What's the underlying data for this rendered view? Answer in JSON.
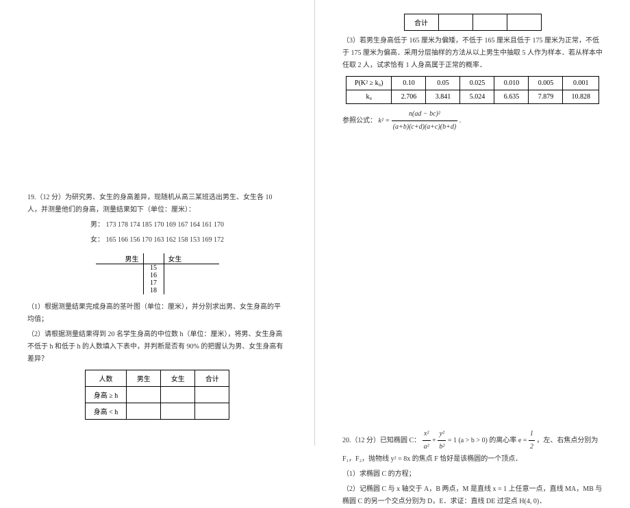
{
  "left": {
    "q19_head": "19.（12 分）为研究男、女生的身高差异，现随机从高三某班选出男生、女生各 10 人，并测量他们的身高，测量结果如下（单位：厘米）：",
    "male_label": "男：",
    "male_data": "173 178 174 185 170 169 167 164 161 170",
    "female_label": "女：",
    "female_data": "165 166 156 170 163 162 158 153 169 172",
    "stem_leaf": {
      "header_l": "男生",
      "header_r": "女生",
      "stems": [
        "15",
        "16",
        "17",
        "18"
      ]
    },
    "part1": "（1）根据测量结果完成身高的茎叶图（单位：厘米），并分别求出男、女生身高的平均值；",
    "part2": "（2）请根据测量结果得到 20 名学生身高的中位数 h（单位：厘米），将男、女生身高不低于 h 和低于 h 的人数填入下表中，并判断是否有 90% 的把握认为男、女生身高有差异？",
    "table2": {
      "c0": "人数",
      "c1": "男生",
      "c2": "女生",
      "c3": "合计",
      "r1": "身高 ≥ h",
      "r2": "身高 < h"
    }
  },
  "right": {
    "row_total": "合计",
    "part3": "（3）若男生身高低于 165 厘米为偏矮，不低于 165 厘米且低于 175 厘米为正常，不低于 175 厘米为偏高．采用分层抽样的方法从以上男生中抽取 5 人作为样本．若从样本中任取 2 人，试求恰有 1 人身高属于正常的概率．",
    "ktable": {
      "h0": "P(K² ≥ k₀)",
      "h1": "0.10",
      "h2": "0.05",
      "h3": "0.025",
      "h4": "0.010",
      "h5": "0.005",
      "h6": "0.001",
      "r0": "k₀",
      "r1": "2.706",
      "r2": "3.841",
      "r3": "5.024",
      "r4": "6.635",
      "r5": "7.879",
      "r6": "10.828"
    },
    "formula_label": "参照公式：",
    "formula_lhs": "k² = ",
    "formula_num": "n(ad − bc)²",
    "formula_den": "(a+b)(c+d)(a+c)(b+d)",
    "q20_head_a": "20.（12 分）已知椭圆 C：",
    "q20_frac1_n": "x²",
    "q20_frac1_d": "a²",
    "q20_plus": " + ",
    "q20_frac2_n": "y²",
    "q20_frac2_d": "b²",
    "q20_head_b": " = 1 (a > b > 0) 的离心率 e = ",
    "q20_frac3_n": "1",
    "q20_frac3_d": "2",
    "q20_head_c": "，左、右焦点分别为 F₁，F₂，抛物线 y² = 8x 的焦点 F 恰好是该椭圆的一个顶点．",
    "q20_p1": "（1）求椭圆 C 的方程；",
    "q20_p2": "（2）记椭圆 C 与 x 轴交于 A，B 两点，M 是直线 x = 1 上任意一点，直线 MA，MB 与椭圆 C 的另一个交点分别为 D，E．求证：直线 DE 过定点 H(4, 0)．"
  }
}
